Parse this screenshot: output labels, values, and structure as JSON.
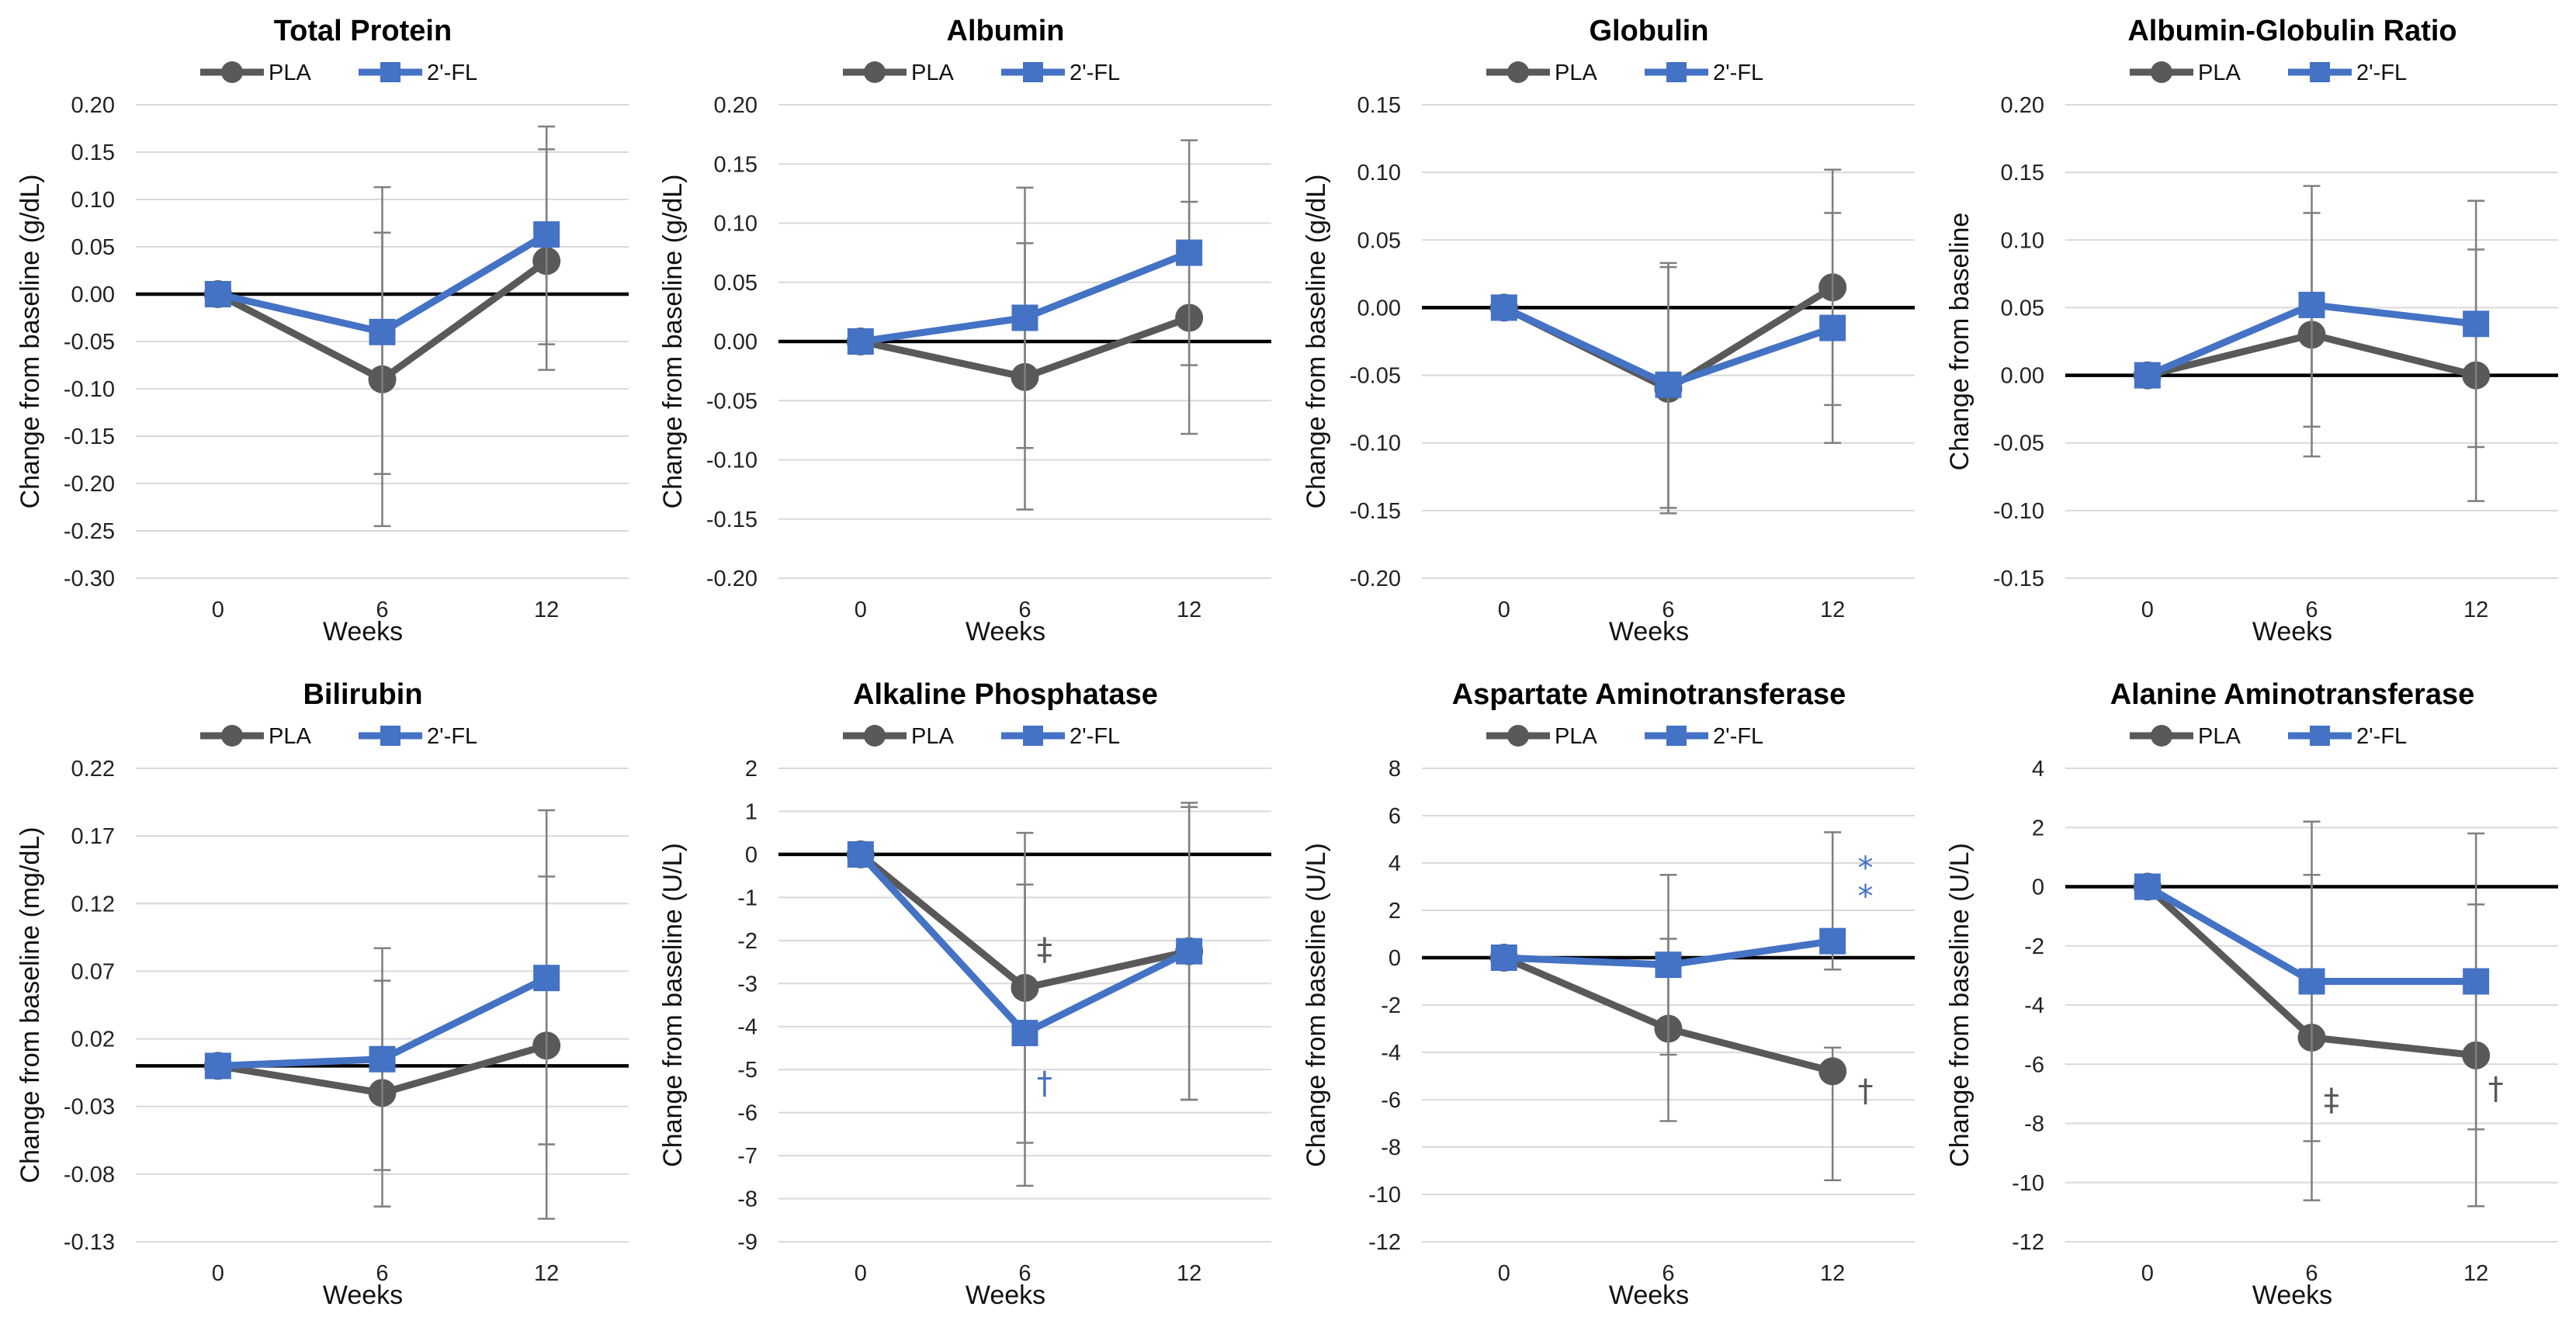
{
  "colors": {
    "pla": "#595959",
    "fl": "#4472C4",
    "zero": "#000000",
    "grid": "#D9D9D9",
    "err": "#7F7F7F"
  },
  "legend": {
    "pla": "PLA",
    "fl": "2'-FL"
  },
  "chart_data": [
    {
      "type": "line",
      "title": "Total Protein",
      "xlabel": "Weeks",
      "ylabel": "Change from baseline (g/dL)",
      "categories": [
        "0",
        "6",
        "12"
      ],
      "ylim": [
        -0.3,
        0.2
      ],
      "ystep": 0.05,
      "decimals": 2,
      "series": [
        {
          "name": "PLA",
          "values": [
            0.0,
            -0.09,
            0.035
          ],
          "err_low": [
            0.0,
            -0.245,
            -0.08
          ],
          "err_high": [
            0.0,
            0.065,
            0.153
          ]
        },
        {
          "name": "2'-FL",
          "values": [
            0.0,
            -0.04,
            0.063
          ],
          "err_low": [
            0.0,
            -0.19,
            -0.053
          ],
          "err_high": [
            0.0,
            0.113,
            0.177
          ]
        }
      ],
      "annotations": []
    },
    {
      "type": "line",
      "title": "Albumin",
      "xlabel": "Weeks",
      "ylabel": "Change from baseline (g/dL)",
      "categories": [
        "0",
        "6",
        "12"
      ],
      "ylim": [
        -0.2,
        0.2
      ],
      "ystep": 0.05,
      "decimals": 2,
      "series": [
        {
          "name": "PLA",
          "values": [
            0.0,
            -0.03,
            0.02
          ],
          "err_low": [
            0.0,
            -0.142,
            -0.078
          ],
          "err_high": [
            0.0,
            0.083,
            0.118
          ]
        },
        {
          "name": "2'-FL",
          "values": [
            0.0,
            0.02,
            0.075
          ],
          "err_low": [
            0.0,
            -0.09,
            -0.02
          ],
          "err_high": [
            0.0,
            0.13,
            0.17
          ]
        }
      ],
      "annotations": []
    },
    {
      "type": "line",
      "title": "Globulin",
      "xlabel": "Weeks",
      "ylabel": "Change from baseline (g/dL)",
      "categories": [
        "0",
        "6",
        "12"
      ],
      "ylim": [
        -0.2,
        0.15
      ],
      "ystep": 0.05,
      "decimals": 2,
      "series": [
        {
          "name": "PLA",
          "values": [
            0.0,
            -0.06,
            0.015
          ],
          "err_low": [
            0.0,
            -0.152,
            -0.072
          ],
          "err_high": [
            0.0,
            0.03,
            0.102
          ]
        },
        {
          "name": "2'-FL",
          "values": [
            0.0,
            -0.057,
            -0.015
          ],
          "err_low": [
            0.0,
            -0.148,
            -0.1
          ],
          "err_high": [
            0.0,
            0.033,
            0.07
          ]
        }
      ],
      "annotations": []
    },
    {
      "type": "line",
      "title": "Albumin-Globulin Ratio",
      "xlabel": "Weeks",
      "ylabel": "Change from baseline",
      "categories": [
        "0",
        "6",
        "12"
      ],
      "ylim": [
        -0.15,
        0.2
      ],
      "ystep": 0.05,
      "decimals": 2,
      "series": [
        {
          "name": "PLA",
          "values": [
            0.0,
            0.03,
            0.0
          ],
          "err_low": [
            0.0,
            -0.06,
            -0.093
          ],
          "err_high": [
            0.0,
            0.12,
            0.093
          ]
        },
        {
          "name": "2'-FL",
          "values": [
            0.0,
            0.052,
            0.038
          ],
          "err_low": [
            0.0,
            -0.038,
            -0.053
          ],
          "err_high": [
            0.0,
            0.14,
            0.129
          ]
        }
      ],
      "annotations": []
    },
    {
      "type": "line",
      "title": "Bilirubin",
      "xlabel": "Weeks",
      "ylabel": "Change from baseline (mg/dL)",
      "categories": [
        "0",
        "6",
        "12"
      ],
      "ylim": [
        -0.13,
        0.22
      ],
      "ystep": 0.05,
      "decimals": 2,
      "series": [
        {
          "name": "PLA",
          "values": [
            0.0,
            -0.02,
            0.015
          ],
          "err_low": [
            0.0,
            -0.104,
            -0.113
          ],
          "err_high": [
            0.0,
            0.063,
            0.14
          ]
        },
        {
          "name": "2'-FL",
          "values": [
            0.0,
            0.005,
            0.065
          ],
          "err_low": [
            0.0,
            -0.077,
            -0.058
          ],
          "err_high": [
            0.0,
            0.087,
            0.189
          ]
        }
      ],
      "annotations": []
    },
    {
      "type": "line",
      "title": "Alkaline Phosphatase",
      "xlabel": "Weeks",
      "ylabel": "Change from baseline (U/L)",
      "categories": [
        "0",
        "6",
        "12"
      ],
      "ylim": [
        -9,
        2
      ],
      "ystep": 1,
      "decimals": 0,
      "series": [
        {
          "name": "PLA",
          "values": [
            0,
            -3.1,
            -2.25
          ],
          "err_low": [
            0,
            -6.7,
            -5.7
          ],
          "err_high": [
            0,
            0.5,
            1.2
          ]
        },
        {
          "name": "2'-FL",
          "values": [
            0,
            -4.15,
            -2.25
          ],
          "err_low": [
            0,
            -7.7,
            -5.7
          ],
          "err_high": [
            0,
            -0.7,
            1.1
          ]
        }
      ],
      "annotations": [
        {
          "text": "‡",
          "series": "PLA",
          "x": 1.12,
          "y": -2.2
        },
        {
          "text": "†",
          "series": "2'-FL",
          "x": 1.12,
          "y": -5.3
        }
      ]
    },
    {
      "type": "line",
      "title": "Aspartate Aminotransferase",
      "xlabel": "Weeks",
      "ylabel": "Change from baseline (U/L)",
      "categories": [
        "0",
        "6",
        "12"
      ],
      "ylim": [
        -12,
        8
      ],
      "ystep": 2,
      "decimals": 0,
      "series": [
        {
          "name": "PLA",
          "values": [
            0,
            -3.0,
            -4.8
          ],
          "err_low": [
            0,
            -6.9,
            -9.4
          ],
          "err_high": [
            0,
            0.8,
            -3.8
          ]
        },
        {
          "name": "2'-FL",
          "values": [
            0,
            -0.3,
            0.7
          ],
          "err_low": [
            0,
            -4.1,
            -0.5
          ],
          "err_high": [
            0,
            3.5,
            5.3
          ]
        }
      ],
      "annotations": [
        {
          "text": "†",
          "series": "PLA",
          "x": 2.2,
          "y": -5.6
        },
        {
          "text": "*",
          "series": "2'-FL",
          "x": 2.2,
          "y": 3.8
        },
        {
          "text": "*",
          "series": "2'-FL",
          "x": 2.2,
          "y": 2.6
        }
      ]
    },
    {
      "type": "line",
      "title": "Alanine Aminotransferase",
      "xlabel": "Weeks",
      "ylabel": "Change from baseline (U/L)",
      "categories": [
        "0",
        "6",
        "12"
      ],
      "ylim": [
        -12,
        4
      ],
      "ystep": 2,
      "decimals": 0,
      "series": [
        {
          "name": "PLA",
          "values": [
            0,
            -5.1,
            -5.7
          ],
          "err_low": [
            0,
            -10.6,
            -10.8
          ],
          "err_high": [
            0,
            0.4,
            -0.6
          ]
        },
        {
          "name": "2'-FL",
          "values": [
            0,
            -3.2,
            -3.2
          ],
          "err_low": [
            0,
            -8.6,
            -8.2
          ],
          "err_high": [
            0,
            2.2,
            1.8
          ]
        }
      ],
      "annotations": [
        {
          "text": "‡",
          "series": "PLA",
          "x": 1.12,
          "y": -7.2
        },
        {
          "text": "†",
          "series": "PLA",
          "x": 2.12,
          "y": -6.8
        }
      ]
    }
  ]
}
